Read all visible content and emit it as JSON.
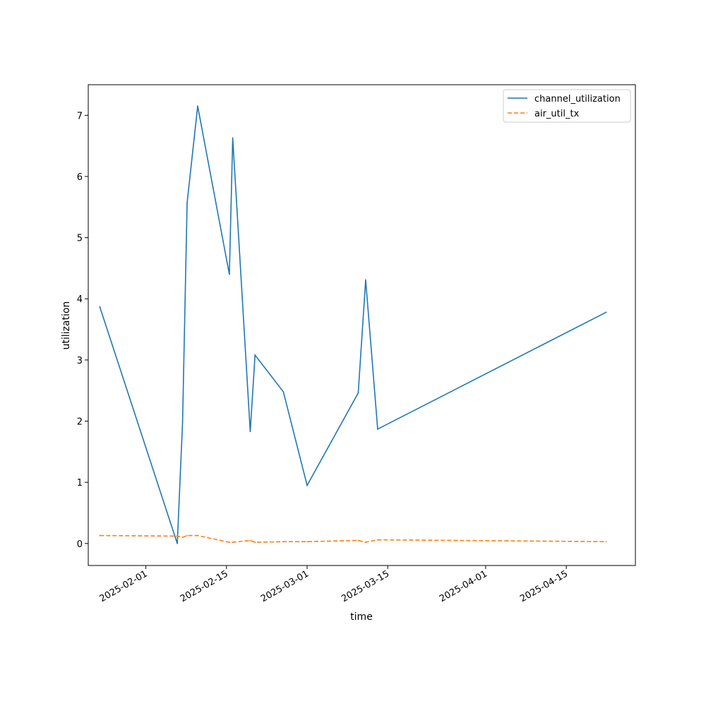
{
  "chart_data": {
    "type": "line",
    "xlabel": "time",
    "ylabel": "utilization",
    "x_type": "date",
    "xlim": [
      "2025-01-22",
      "2025-04-27"
    ],
    "ylim": [
      -0.36,
      7.5
    ],
    "x_ticks": [
      "2025-02-01",
      "2025-02-15",
      "2025-03-01",
      "2025-03-15",
      "2025-04-01",
      "2025-04-15"
    ],
    "y_ticks": [
      0,
      1,
      2,
      3,
      4,
      5,
      6,
      7
    ],
    "grid": false,
    "legend_position": "top-right",
    "series": [
      {
        "name": "channel_utilization",
        "color": "#1f77b4",
        "style": "solid",
        "points": [
          [
            "2025-01-24T00:00",
            3.87
          ],
          [
            "2025-02-06T11:00",
            0.0
          ],
          [
            "2025-02-07T09:00",
            1.98
          ],
          [
            "2025-02-08T04:00",
            5.57
          ],
          [
            "2025-02-10T00:00",
            7.15
          ],
          [
            "2025-02-15T12:00",
            4.4
          ],
          [
            "2025-02-16T02:00",
            6.63
          ],
          [
            "2025-02-19T03:00",
            1.83
          ],
          [
            "2025-02-19T23:00",
            3.08
          ],
          [
            "2025-02-24T21:00",
            2.48
          ],
          [
            "2025-03-01T00:00",
            0.95
          ],
          [
            "2025-03-09T21:00",
            2.46
          ],
          [
            "2025-03-11T04:00",
            4.31
          ],
          [
            "2025-03-13T06:00",
            1.87
          ],
          [
            "2025-04-21T22:00",
            3.78
          ]
        ]
      },
      {
        "name": "air_util_tx",
        "color": "#ff7f0e",
        "style": "dashed",
        "points": [
          [
            "2025-01-24T00:00",
            0.13
          ],
          [
            "2025-02-06T11:00",
            0.12
          ],
          [
            "2025-02-07T09:00",
            0.1
          ],
          [
            "2025-02-08T04:00",
            0.13
          ],
          [
            "2025-02-10T00:00",
            0.13
          ],
          [
            "2025-02-15T12:00",
            0.02
          ],
          [
            "2025-02-16T02:00",
            0.02
          ],
          [
            "2025-02-19T03:00",
            0.05
          ],
          [
            "2025-02-19T23:00",
            0.02
          ],
          [
            "2025-02-24T21:00",
            0.03
          ],
          [
            "2025-03-01T00:00",
            0.03
          ],
          [
            "2025-03-09T21:00",
            0.05
          ],
          [
            "2025-03-11T04:00",
            0.02
          ],
          [
            "2025-03-13T06:00",
            0.06
          ],
          [
            "2025-04-21T22:00",
            0.03
          ]
        ]
      }
    ]
  }
}
